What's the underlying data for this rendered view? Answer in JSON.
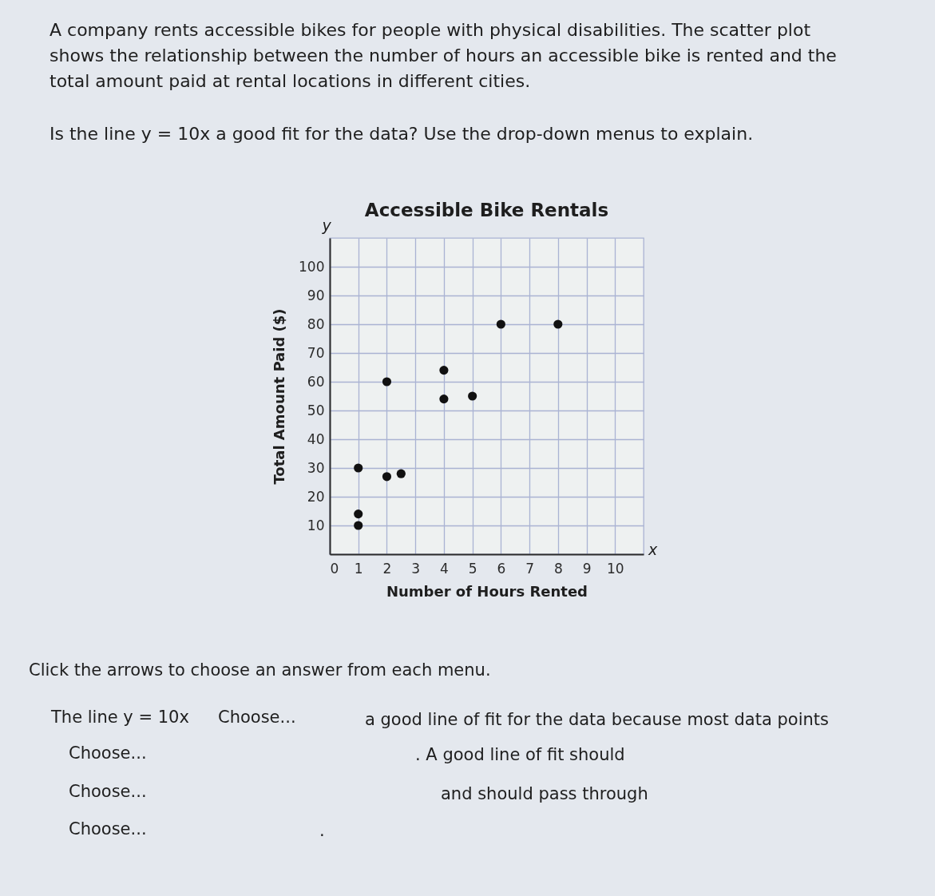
{
  "chart_data": {
    "type": "scatter",
    "title": "Accessible Bike Rentals",
    "xlabel": "Number of Hours Rented",
    "ylabel": "Total Amount Paid ($)",
    "x": [
      1,
      1,
      1,
      2,
      2.5,
      2,
      4,
      4,
      5,
      6,
      8
    ],
    "values": [
      30,
      14,
      10,
      27,
      28,
      60,
      64,
      54,
      55,
      80,
      80
    ],
    "color": "#111111",
    "marker": "circle",
    "xlim": [
      0,
      11
    ],
    "ylim": [
      0,
      110
    ],
    "xticks": [
      0,
      1,
      2,
      3,
      4,
      5,
      6,
      7,
      8,
      9,
      10
    ],
    "yticks": [
      10,
      20,
      30,
      40,
      50,
      60,
      70,
      80,
      90,
      100
    ],
    "grid": true,
    "annotations": [
      "A company rents accessible bikes for people with physical disabilities. The scatter plot shows the relationship between the number of hours an accessible bike is rented and the total amount paid at rental locations in different cities.",
      "Is the line y = 10x a good fit for the data? Use the drop-down menus to explain.",
      "y",
      "x",
      "Click the arrows to choose an answer from each menu.",
      "The line y = 10x",
      "Choose...",
      "a good line of fit for the data because most data points",
      "Choose...",
      ". A good line of fit should",
      "Choose...",
      "and should pass through",
      "Choose...",
      "."
    ]
  }
}
